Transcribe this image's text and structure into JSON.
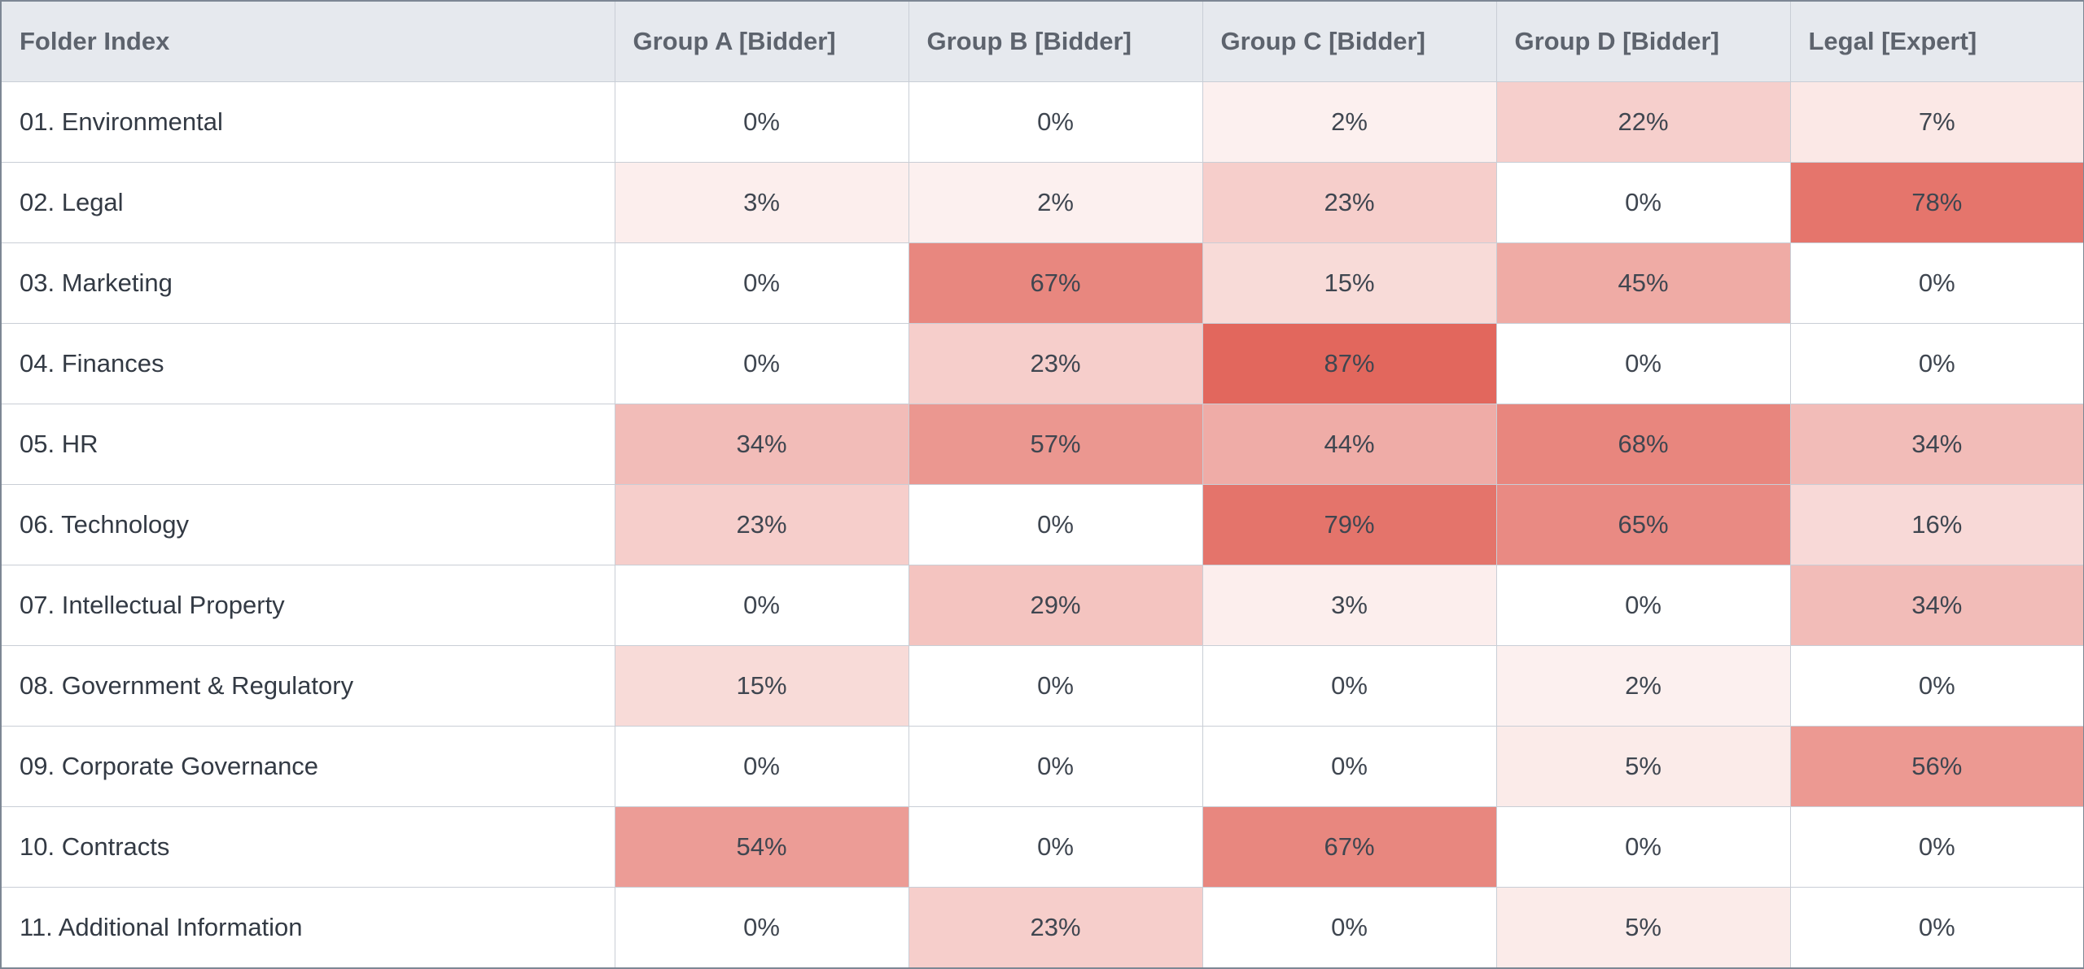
{
  "header": {
    "first_col": "Folder Index",
    "columns": [
      "Group A [Bidder]",
      "Group B [Bidder]",
      "Group C [Bidder]",
      "Group D [Bidder]",
      "Legal [Expert]"
    ]
  },
  "colors": {
    "zero": "#ffffff",
    "max": "#e2675d",
    "header_bg": "#e6e9ee"
  },
  "rows": [
    {
      "label": "01. Environmental",
      "values": [
        "0%",
        "0%",
        "2%",
        "22%",
        "7%"
      ]
    },
    {
      "label": "02. Legal",
      "values": [
        "3%",
        "2%",
        "23%",
        "0%",
        "78%"
      ]
    },
    {
      "label": "03. Marketing",
      "values": [
        "0%",
        "67%",
        "15%",
        "45%",
        "0%"
      ]
    },
    {
      "label": "04. Finances",
      "values": [
        "0%",
        "23%",
        "87%",
        "0%",
        "0%"
      ]
    },
    {
      "label": "05. HR",
      "values": [
        "34%",
        "57%",
        "44%",
        "68%",
        "34%"
      ]
    },
    {
      "label": "06. Technology",
      "values": [
        "23%",
        "0%",
        "79%",
        "65%",
        "16%"
      ]
    },
    {
      "label": "07. Intellectual Property",
      "values": [
        "0%",
        "29%",
        "3%",
        "0%",
        "34%"
      ]
    },
    {
      "label": "08. Government & Regulatory",
      "values": [
        "15%",
        "0%",
        "0%",
        "2%",
        "0%"
      ]
    },
    {
      "label": "09. Corporate Governance",
      "values": [
        "0%",
        "0%",
        "0%",
        "5%",
        "56%"
      ]
    },
    {
      "label": "10. Contracts",
      "values": [
        "54%",
        "0%",
        "67%",
        "0%",
        "0%"
      ]
    },
    {
      "label": "11. Additional Information",
      "values": [
        "0%",
        "23%",
        "0%",
        "5%",
        "0%"
      ]
    }
  ]
}
